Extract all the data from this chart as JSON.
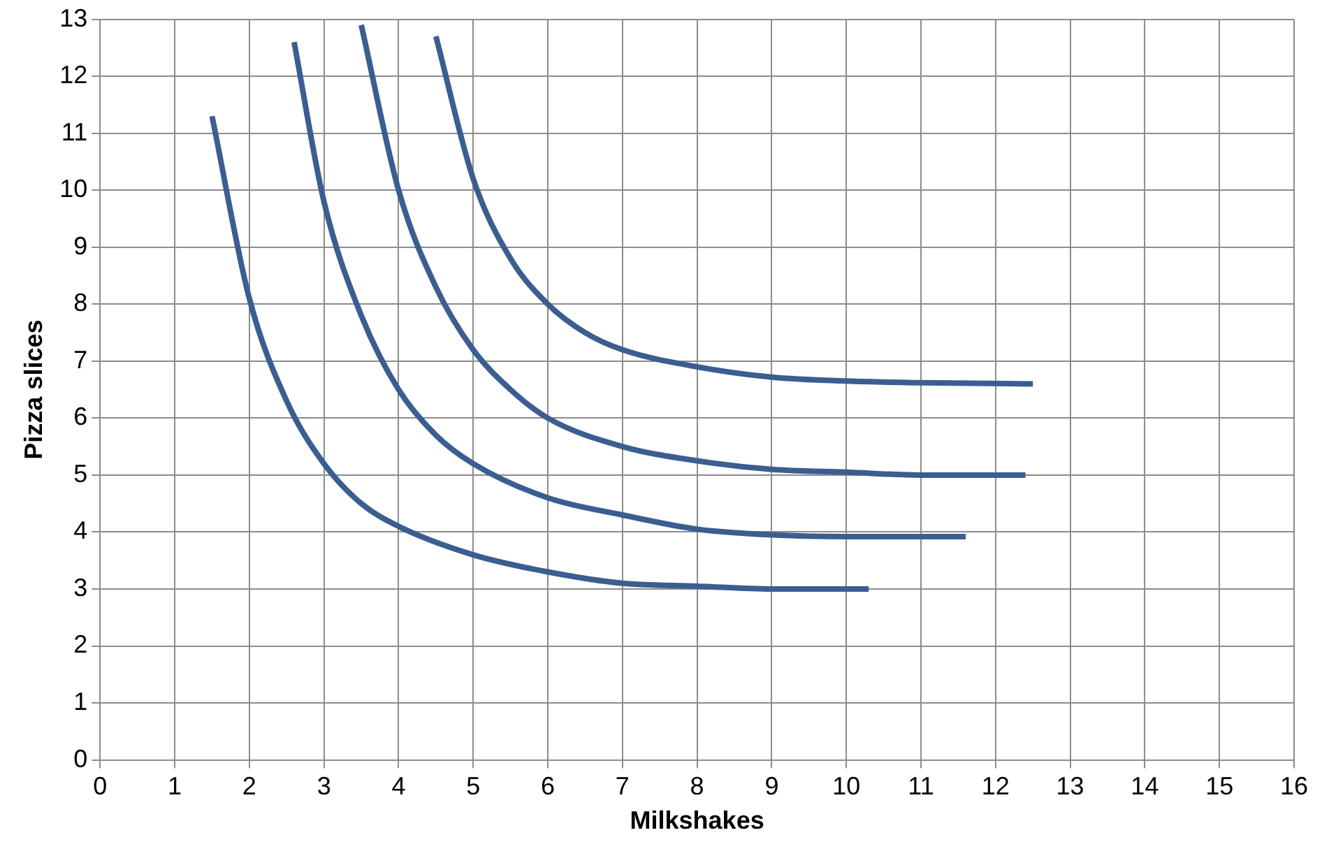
{
  "chart_data": {
    "type": "line",
    "xlabel": "Milkshakes",
    "ylabel": "Pizza slices",
    "xlim": [
      0,
      16
    ],
    "ylim": [
      0,
      13
    ],
    "xticks": [
      0,
      1,
      2,
      3,
      4,
      5,
      6,
      7,
      8,
      9,
      10,
      11,
      12,
      13,
      14,
      15,
      16
    ],
    "yticks": [
      0,
      1,
      2,
      3,
      4,
      5,
      6,
      7,
      8,
      9,
      10,
      11,
      12,
      13
    ],
    "grid": true,
    "legend": false,
    "marker": "none",
    "line_style": "solid",
    "series": [
      {
        "color": "#3b5e91",
        "x": [
          1.5,
          2,
          2.5,
          3,
          3.5,
          4,
          5,
          6,
          7,
          8,
          9,
          10.3
        ],
        "values": [
          11.3,
          8.1,
          6.3,
          5.2,
          4.5,
          4.1,
          3.6,
          3.3,
          3.1,
          3.05,
          3.0,
          3.0
        ]
      },
      {
        "color": "#3b5e91",
        "x": [
          2.6,
          3,
          3.5,
          4,
          4.5,
          5,
          6,
          7,
          8,
          9,
          10,
          11.6
        ],
        "values": [
          12.6,
          9.8,
          7.8,
          6.5,
          5.7,
          5.2,
          4.6,
          4.3,
          4.05,
          3.95,
          3.92,
          3.92
        ]
      },
      {
        "color": "#3b5e91",
        "x": [
          3.5,
          4,
          4.5,
          5,
          5.5,
          6,
          7,
          8,
          9,
          10,
          11,
          12.4
        ],
        "values": [
          12.9,
          10,
          8.3,
          7.2,
          6.5,
          6.0,
          5.5,
          5.25,
          5.1,
          5.05,
          5.0,
          5.0
        ]
      },
      {
        "color": "#3b5e91",
        "x": [
          4.5,
          5,
          5.5,
          6,
          6.5,
          7,
          8,
          9,
          10,
          11,
          12.5
        ],
        "values": [
          12.7,
          10.2,
          8.8,
          8.0,
          7.5,
          7.2,
          6.9,
          6.72,
          6.65,
          6.62,
          6.6
        ]
      }
    ]
  }
}
